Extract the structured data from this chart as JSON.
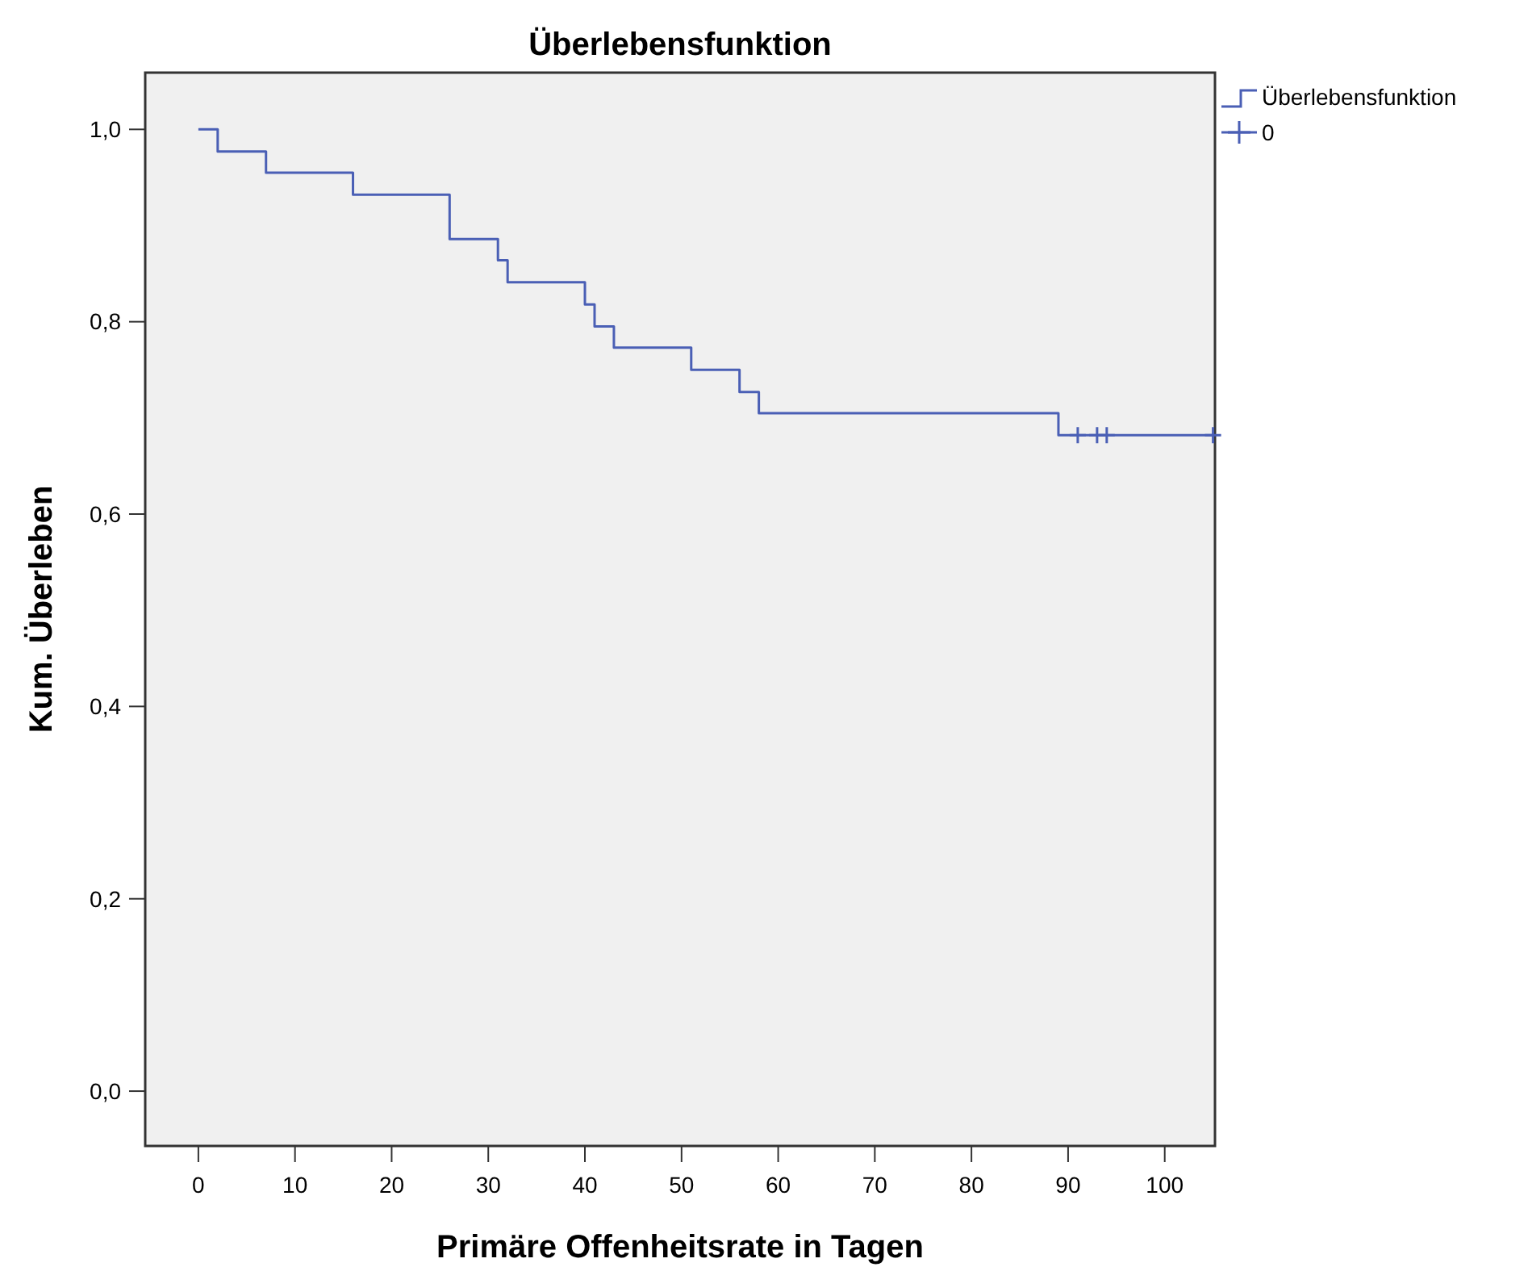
{
  "chart_data": {
    "type": "step",
    "title": "Überlebensfunktion",
    "xlabel": "Primäre Offenheitsrate in Tagen",
    "ylabel": "Kum. Überleben",
    "xlim": [
      -5.5,
      105.2
    ],
    "xticks": [
      0,
      10,
      20,
      30,
      40,
      50,
      60,
      70,
      80,
      90,
      100
    ],
    "ylim": [
      -0.057,
      1.059
    ],
    "yticks": [
      {
        "value": 0,
        "label": "0,0"
      },
      {
        "value": 0.2,
        "label": "0,2"
      },
      {
        "value": 0.4,
        "label": "0,4"
      },
      {
        "value": 0.6,
        "label": "0,6"
      },
      {
        "value": 0.8,
        "label": "0,8"
      },
      {
        "value": 1,
        "label": "1,0"
      }
    ],
    "grid": false,
    "legend": "top right",
    "series": [
      {
        "name": "Überlebensfunktion",
        "color": "#4a5fb5",
        "x": [
          0,
          2,
          7,
          16,
          26,
          31,
          32,
          40,
          41,
          43,
          51,
          56,
          58,
          89,
          105
        ],
        "values": [
          1,
          0.977,
          0.955,
          0.932,
          0.886,
          0.864,
          0.841,
          0.818,
          0.795,
          0.773,
          0.75,
          0.727,
          0.705,
          0.682,
          0.682
        ]
      },
      {
        "name": "0",
        "type": "scatter",
        "marker": "cross",
        "color": "#4a5fb5",
        "x": [
          91,
          93,
          94,
          105
        ],
        "values": [
          0.682,
          0.682,
          0.682,
          0.682
        ]
      }
    ]
  }
}
